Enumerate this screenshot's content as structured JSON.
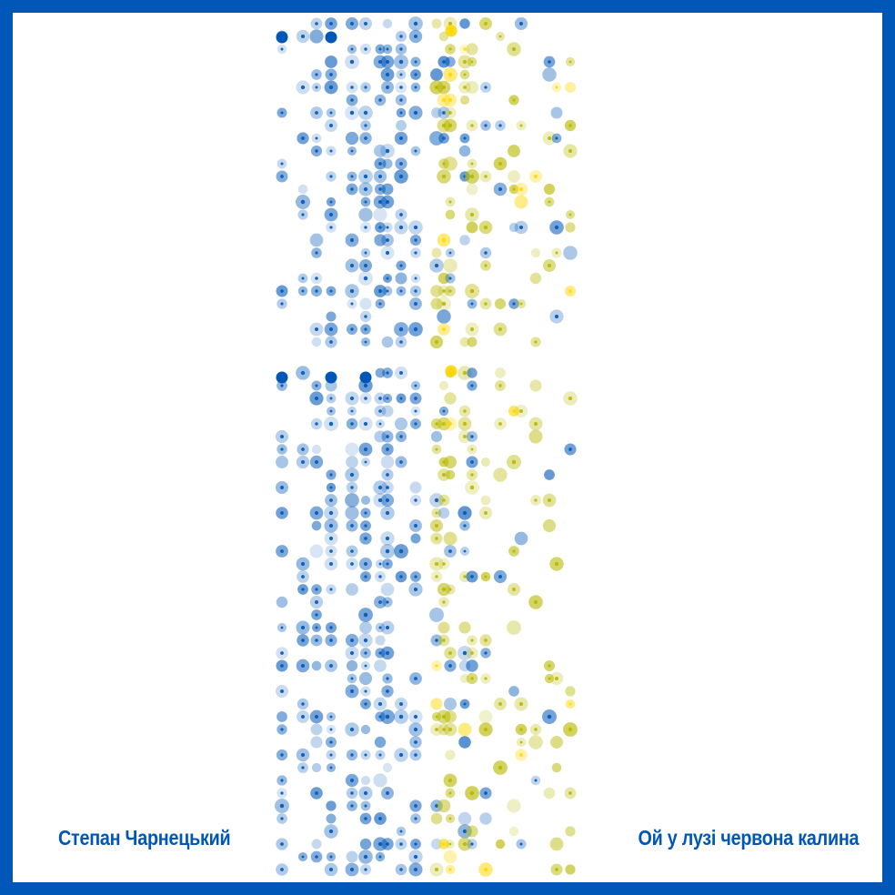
{
  "composer": "Степан Чарнецький",
  "song_title": "Ой у лузі червона калина",
  "colors": {
    "frame": "#0057b7",
    "blue": "#0057b7",
    "yellow": "#b8b800",
    "yellow_bright": "#ffd700",
    "background": "#ffffff"
  }
}
